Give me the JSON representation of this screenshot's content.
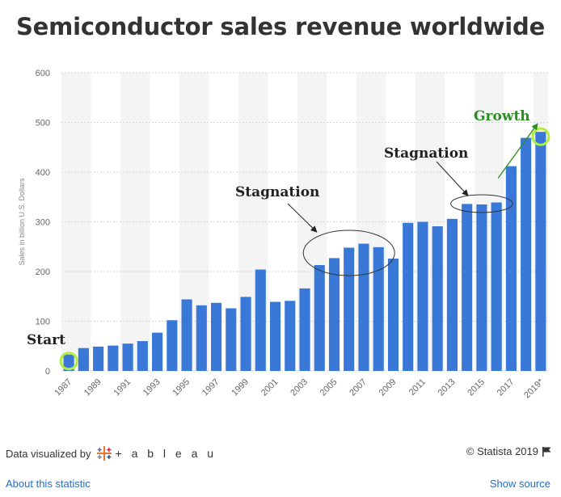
{
  "footer": {
    "visualized_by": "Data visualized by",
    "tableau_brand": "+ a b l e a u",
    "copyright": "© Statista 2019",
    "about_link": "About this statistic",
    "source_link": "Show source"
  },
  "colors": {
    "bar": "#3a78d8",
    "band": "#f4f4f4",
    "highlight": "#aef03a",
    "growth": "#2a8f20",
    "link": "#2a6ec8"
  },
  "chart_data": {
    "type": "bar",
    "title": "Semiconductor sales revenue worldwide",
    "ylabel": "Sales in billion U.S. Dollars",
    "xlabel": "",
    "ylim": [
      0,
      600
    ],
    "yticks": [
      0,
      100,
      200,
      300,
      400,
      500,
      600
    ],
    "categories": [
      "1987",
      "1988",
      "1989",
      "1990",
      "1991",
      "1992",
      "1993",
      "1994",
      "1995",
      "1996",
      "1997",
      "1998",
      "1999",
      "2000",
      "2001",
      "2002",
      "2003",
      "2004",
      "2005",
      "2006",
      "2007",
      "2008",
      "2009",
      "2010",
      "2011",
      "2012",
      "2013",
      "2014",
      "2015",
      "2016",
      "2017",
      "2018",
      "2019*"
    ],
    "x_tick_labels": [
      "1987",
      "1989",
      "1991",
      "1993",
      "1995",
      "1997",
      "1999",
      "2001",
      "2003",
      "2005",
      "2007",
      "2009",
      "2011",
      "2013",
      "2015",
      "2017",
      "2019*"
    ],
    "values": [
      33,
      46,
      49,
      51,
      55,
      60,
      77,
      102,
      144,
      132,
      137,
      126,
      149,
      204,
      139,
      141,
      166,
      213,
      227,
      248,
      256,
      249,
      226,
      298,
      300,
      291,
      306,
      336,
      335,
      339,
      412,
      469,
      481
    ],
    "grid": true,
    "annotations": [
      {
        "text": "Start",
        "category": "1987"
      },
      {
        "text": "Stagnation",
        "categories": [
          "2004",
          "2008"
        ]
      },
      {
        "text": "Stagnation",
        "categories": [
          "2014",
          "2016"
        ]
      },
      {
        "text": "Growth",
        "categories": [
          "2016",
          "2019*"
        ]
      }
    ]
  }
}
